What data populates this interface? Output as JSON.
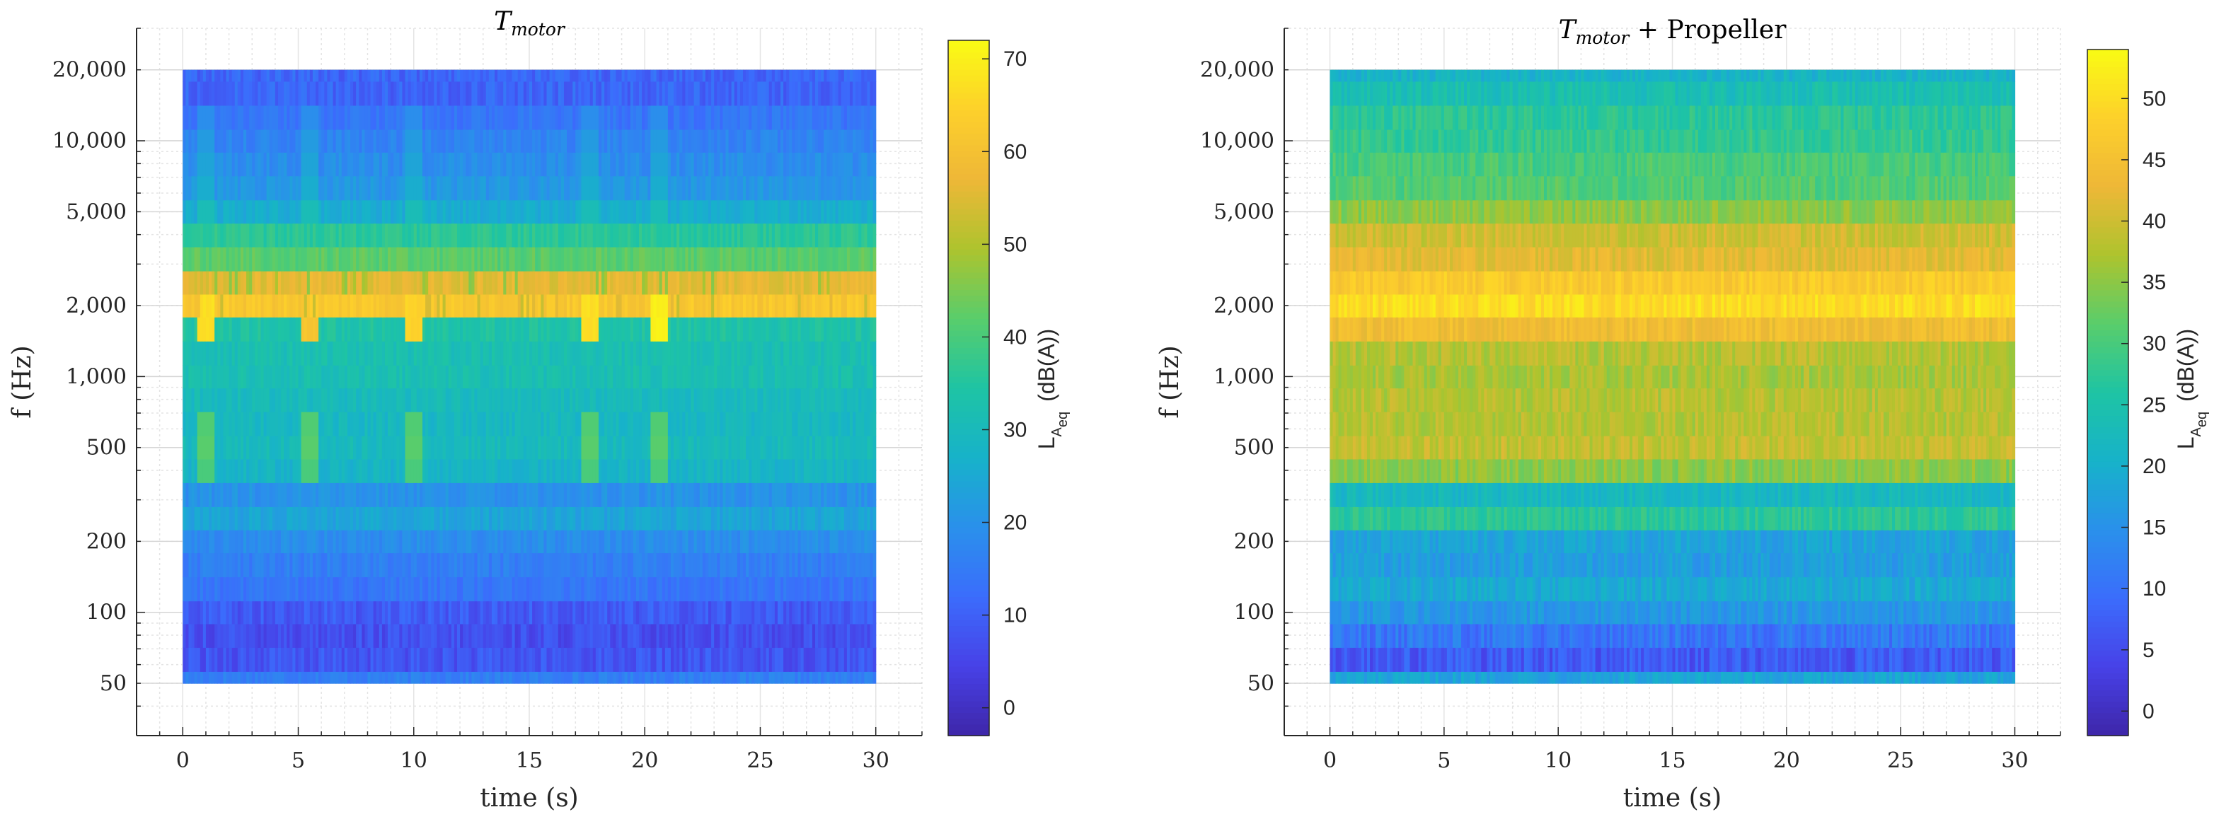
{
  "chart_data": [
    {
      "type": "heatmap",
      "title": {
        "main": "T",
        "sub": "motor",
        "suffix": ""
      },
      "xlabel": "time (s)",
      "ylabel": "f  (Hz)",
      "x_ticks": [
        0,
        5,
        10,
        15,
        20,
        25,
        30
      ],
      "xlim": [
        -2,
        32
      ],
      "y_scale": "log",
      "ylim": [
        30,
        30000
      ],
      "y_ticks": [
        50,
        100,
        200,
        500,
        1000,
        2000,
        5000,
        10000,
        20000
      ],
      "y_tick_labels": [
        "50",
        "100",
        "200",
        "500",
        "1,000",
        "2,000",
        "5,000",
        "10,000",
        "20,000"
      ],
      "time_range": [
        0,
        30
      ],
      "bands_hz": [
        50,
        63,
        80,
        100,
        125,
        160,
        200,
        250,
        315,
        400,
        500,
        630,
        800,
        1000,
        1250,
        1600,
        2000,
        2500,
        3150,
        4000,
        5000,
        6300,
        8000,
        10000,
        12500,
        16000,
        20000
      ],
      "band_levels_dbA": [
        16,
        8,
        7,
        9,
        14,
        16,
        19,
        24,
        20,
        28,
        30,
        29,
        30,
        32,
        32,
        34,
        62,
        56,
        42,
        36,
        26,
        21,
        19,
        17,
        14,
        11,
        11
      ],
      "spike_times_s": [
        1,
        5.5,
        10,
        17.6,
        20.6
      ],
      "spike_peak_levels_dbA": [
        68,
        62,
        66,
        68,
        71
      ],
      "colorbar": {
        "label": "L",
        "sub1": "A",
        "sub2": "eq",
        "unit": "(dB(A))",
        "ticks": [
          0,
          10,
          20,
          30,
          40,
          50,
          60,
          70
        ],
        "clim": [
          -3,
          72
        ]
      },
      "grid": true
    },
    {
      "type": "heatmap",
      "title": {
        "main": "T",
        "sub": "motor",
        "suffix": " + Propeller"
      },
      "xlabel": "time (s)",
      "ylabel": "f  (Hz)",
      "x_ticks": [
        0,
        5,
        10,
        15,
        20,
        25,
        30
      ],
      "xlim": [
        -2,
        32
      ],
      "y_scale": "log",
      "ylim": [
        30,
        30000
      ],
      "y_ticks": [
        50,
        100,
        200,
        500,
        1000,
        2000,
        5000,
        10000,
        20000
      ],
      "y_tick_labels": [
        "50",
        "100",
        "200",
        "500",
        "1,000",
        "2,000",
        "5,000",
        "10,000",
        "20,000"
      ],
      "time_range": [
        0,
        30
      ],
      "bands_hz": [
        50,
        63,
        80,
        100,
        125,
        160,
        200,
        250,
        315,
        400,
        500,
        630,
        800,
        1000,
        1250,
        1600,
        2000,
        2500,
        3150,
        4000,
        5000,
        6300,
        8000,
        10000,
        12500,
        16000,
        20000
      ],
      "band_levels_dbA": [
        18,
        7,
        11,
        16,
        19,
        17,
        18,
        27,
        22,
        35,
        39,
        38,
        38,
        37,
        38,
        44,
        50,
        47,
        42,
        40,
        35,
        31,
        30,
        28,
        27,
        24,
        21
      ],
      "spike_times_s": [],
      "spike_peak_levels_dbA": [],
      "colorbar": {
        "label": "L",
        "sub1": "A",
        "sub2": "eq",
        "unit": "(dB(A))",
        "ticks": [
          0,
          5,
          10,
          15,
          20,
          25,
          30,
          35,
          40,
          45,
          50
        ],
        "clim": [
          -2,
          54
        ]
      },
      "grid": true
    }
  ]
}
